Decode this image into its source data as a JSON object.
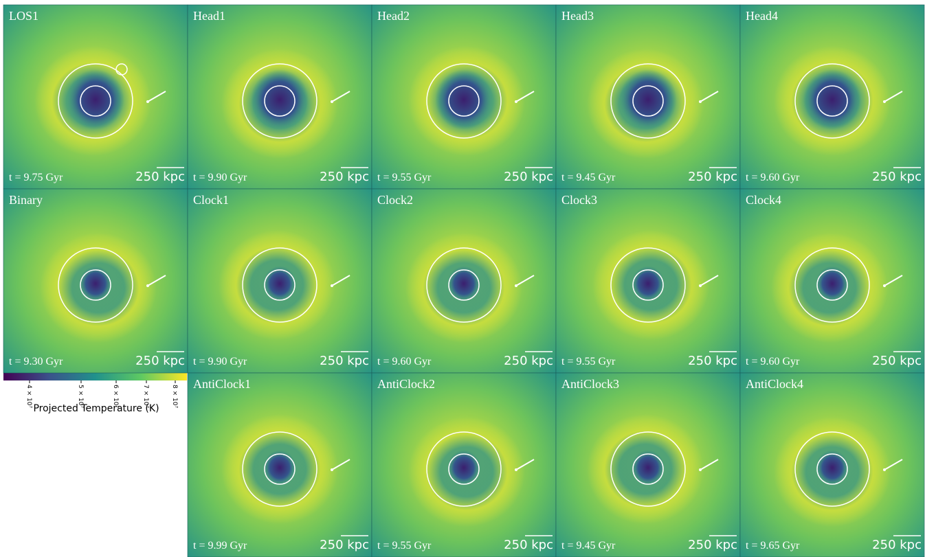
{
  "panels": [
    {
      "title": "LOS1",
      "time": "t = 9.75 Gyr",
      "scale": "250 kpc"
    },
    {
      "title": "Head1",
      "time": "t = 9.90 Gyr",
      "scale": "250 kpc"
    },
    {
      "title": "Head2",
      "time": "t = 9.55 Gyr",
      "scale": "250 kpc"
    },
    {
      "title": "Head3",
      "time": "t = 9.45 Gyr",
      "scale": "250 kpc"
    },
    {
      "title": "Head4",
      "time": "t = 9.60 Gyr",
      "scale": "250 kpc"
    },
    {
      "title": "Binary",
      "time": "t = 9.30 Gyr",
      "scale": "250 kpc"
    },
    {
      "title": "Clock1",
      "time": "t = 9.90 Gyr",
      "scale": "250 kpc"
    },
    {
      "title": "Clock2",
      "time": "t = 9.60 Gyr",
      "scale": "250 kpc"
    },
    {
      "title": "Clock3",
      "time": "t = 9.55 Gyr",
      "scale": "250 kpc"
    },
    {
      "title": "Clock4",
      "time": "t = 9.60 Gyr",
      "scale": "250 kpc"
    },
    {
      "title": "AntiClock1",
      "time": "t = 9.99 Gyr",
      "scale": "250 kpc"
    },
    {
      "title": "AntiClock2",
      "time": "t = 9.55 Gyr",
      "scale": "250 kpc"
    },
    {
      "title": "AntiClock3",
      "time": "t = 9.45 Gyr",
      "scale": "250 kpc"
    },
    {
      "title": "AntiClock4",
      "time": "t = 9.65 Gyr",
      "scale": "250 kpc"
    }
  ],
  "colorbar": {
    "label": "Projected Temperature (K)",
    "ticks": [
      "4 × 10⁷",
      "5 × 10⁷",
      "6 × 10⁷",
      "7 × 10⁷",
      "8 × 10⁷"
    ]
  }
}
